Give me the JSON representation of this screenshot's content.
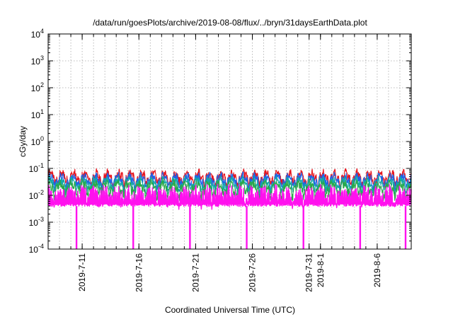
{
  "chart_data": {
    "type": "line",
    "title": "/data/run/goesPlots/archive/2019-08-08/flux/../bryn/31daysEarthData.plot",
    "xlabel": "Coordinated Universal Time (UTC)",
    "ylabel": "cGy/day",
    "yscale": "log",
    "ylim": [
      0.0001,
      10000
    ],
    "xlim": [
      "2019-07-08",
      "2019-08-09"
    ],
    "grid": true,
    "legend": "none",
    "y_ticks": [
      {
        "value": 0.0001,
        "mantissa": "10",
        "exponent": "-4"
      },
      {
        "value": 0.001,
        "mantissa": "10",
        "exponent": "-3"
      },
      {
        "value": 0.01,
        "mantissa": "10",
        "exponent": "-2"
      },
      {
        "value": 0.1,
        "mantissa": "10",
        "exponent": "-1"
      },
      {
        "value": 1,
        "mantissa": "10",
        "exponent": "0"
      },
      {
        "value": 10,
        "mantissa": "10",
        "exponent": "1"
      },
      {
        "value": 100,
        "mantissa": "10",
        "exponent": "2"
      },
      {
        "value": 1000,
        "mantissa": "10",
        "exponent": "3"
      },
      {
        "value": 10000,
        "mantissa": "10",
        "exponent": "4"
      }
    ],
    "x_ticks": [
      {
        "date": "2019-07-11",
        "label": "2019-7-11"
      },
      {
        "date": "2019-07-16",
        "label": "2019-7-16"
      },
      {
        "date": "2019-07-21",
        "label": "2019-7-21"
      },
      {
        "date": "2019-07-26",
        "label": "2019-7-26"
      },
      {
        "date": "2019-07-31",
        "label": "2019-7-31"
      },
      {
        "date": "2019-08-01",
        "label": "2019-8-1"
      },
      {
        "date": "2019-08-06",
        "label": "2019-8-6"
      }
    ],
    "series": [
      {
        "color": "#e8141c",
        "base": 0.048,
        "amp": 0.018,
        "noise": 0.35
      },
      {
        "color": "#1f62e8",
        "base": 0.038,
        "amp": 0.014,
        "noise": 0.3
      },
      {
        "color": "#13a8a8",
        "base": 0.028,
        "amp": 0.01,
        "noise": 0.3
      },
      {
        "color": "#2aa84a",
        "base": 0.02,
        "amp": 0.008,
        "noise": 0.35
      },
      {
        "color": "#ff11ee",
        "base": 0.012,
        "amp": 0.004,
        "noise": 0.55,
        "low": 0.0043
      }
    ],
    "data_gaps": [
      "2019-07-10",
      "2019-07-15",
      "2019-07-20",
      "2019-07-25",
      "2019-07-30",
      "2019-08-04",
      "2019-08-08"
    ],
    "data_gap_color": "#ff11ee"
  }
}
